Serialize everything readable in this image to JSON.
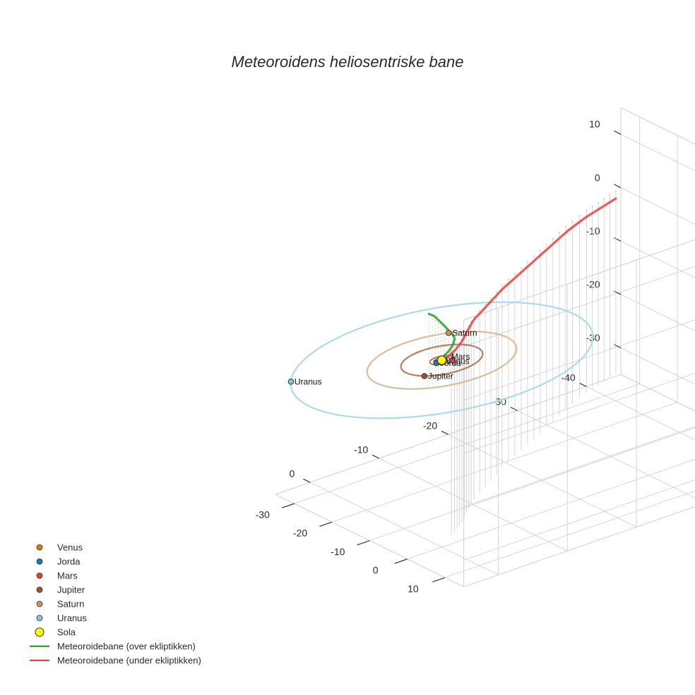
{
  "chart_data": {
    "type": "scatter3d",
    "title": "Meteoroidens heliosentriske bane",
    "xlabel": "",
    "ylabel": "",
    "zlabel": "",
    "x_axis": {
      "range": [
        -45,
        5
      ],
      "ticks": [
        -40,
        -30,
        -20,
        -10,
        0
      ]
    },
    "y_axis": {
      "range": [
        -35,
        15
      ],
      "ticks": [
        -30,
        -20,
        -10,
        0,
        10
      ]
    },
    "z_axis": {
      "range": [
        -35,
        15
      ],
      "ticks": [
        10,
        0,
        -10,
        -20,
        -30
      ]
    },
    "grid": true,
    "legend_position": "bottom-left",
    "colors": {
      "Venus": "#d97b1a",
      "Jorda": "#1f77b4",
      "Mars": "#d9472b",
      "Jupiter": "#a0522d",
      "Saturn": "#c8966a",
      "Uranus": "#87c7d9",
      "Sola": "#ffff00",
      "orbit_Jupiter": "#b07a5a",
      "orbit_Saturn": "#d9b896",
      "orbit_Uranus": "#a6d9e6",
      "path_above": "#2ca02c",
      "path_below": "#e8413e",
      "drop_lines": "#cccccc"
    },
    "orbits": [
      {
        "name": "Venus",
        "radius": 0.72
      },
      {
        "name": "Jorda",
        "radius": 1.0
      },
      {
        "name": "Mars",
        "radius": 1.52
      },
      {
        "name": "Jupiter",
        "radius": 5.2
      },
      {
        "name": "Saturn",
        "radius": 9.5
      },
      {
        "name": "Uranus",
        "radius": 19.2
      }
    ],
    "planets": [
      {
        "name": "Venus",
        "label": "Venus",
        "x": 0.2,
        "y": 0.7,
        "z": 0
      },
      {
        "name": "Jorda",
        "label": "Jorda",
        "x": 0.95,
        "y": 0.3,
        "z": 0
      },
      {
        "name": "Mars",
        "label": "Mars",
        "x": -0.9,
        "y": 1.2,
        "z": 0
      },
      {
        "name": "Jupiter",
        "label": "Jupiter",
        "x": 4.2,
        "y": 3.1,
        "z": 0
      },
      {
        "name": "Saturn",
        "label": "Saturn",
        "x": -5.3,
        "y": -7.9,
        "z": 0
      },
      {
        "name": "Uranus",
        "label": "Uranus",
        "x": 16.5,
        "y": -9.8,
        "z": 0
      },
      {
        "name": "Sola",
        "label": "",
        "x": 0,
        "y": 0,
        "z": 0
      }
    ],
    "series": [
      {
        "name": "Meteoroidebane (over ekliptikken)",
        "x": [
          0.3,
          0.5,
          0.3,
          0.0,
          0.0,
          0.2,
          1.0,
          2.0,
          3.0,
          4.0,
          5.0,
          6.0
        ],
        "y": [
          0.0,
          0.5,
          1.0,
          2.0,
          3.0,
          3.8,
          4.5,
          5.2,
          6.0,
          6.6,
          7.2,
          7.6
        ],
        "z": [
          0.0,
          0.6,
          1.2,
          2.5,
          4.0,
          5.5,
          7.0,
          8.5,
          10.0,
          11.5,
          13.0,
          14.0
        ]
      },
      {
        "name": "Meteoroidebane (under ekliptikken)",
        "x": [
          0.3,
          -1.0,
          -3.0,
          -5.0,
          -7.5,
          -10.0,
          -14.0,
          -18.0,
          -22.0,
          -26.0,
          -30.0,
          -34.0,
          -38.0,
          -41.0,
          -44.0
        ],
        "y": [
          0.0,
          -0.5,
          -2.0,
          -4.0,
          -7.0,
          -10.0,
          -13.5,
          -17.0,
          -20.0,
          -23.0,
          -26.0,
          -29.0,
          -31.5,
          -33.0,
          -34.5
        ],
        "z": [
          0.0,
          -0.1,
          -0.2,
          -0.3,
          -0.4,
          -0.5,
          -0.6,
          -0.7,
          -0.8,
          -0.9,
          -1.0,
          -1.1,
          -1.2,
          -1.3,
          -1.4
        ]
      }
    ],
    "legend": [
      {
        "label": "Venus",
        "kind": "marker",
        "color_key": "Venus"
      },
      {
        "label": "Jorda",
        "kind": "marker",
        "color_key": "Jorda"
      },
      {
        "label": "Mars",
        "kind": "marker",
        "color_key": "Mars"
      },
      {
        "label": "Jupiter",
        "kind": "marker",
        "color_key": "Jupiter"
      },
      {
        "label": "Saturn",
        "kind": "marker",
        "color_key": "Saturn"
      },
      {
        "label": "Uranus",
        "kind": "marker",
        "color_key": "Uranus"
      },
      {
        "label": "Sola",
        "kind": "sun",
        "color_key": "Sola"
      },
      {
        "label": "Meteoroidebane (over ekliptikken)",
        "kind": "line",
        "color_key": "path_above"
      },
      {
        "label": "Meteoroidebane (under ekliptikken)",
        "kind": "line",
        "color_key": "path_below"
      }
    ]
  }
}
